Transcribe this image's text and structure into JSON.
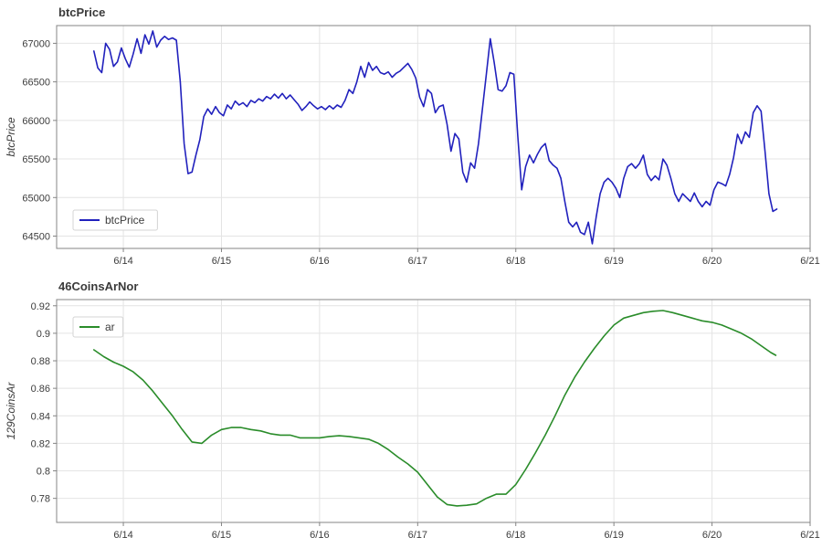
{
  "page": {
    "background": "#ffffff"
  },
  "chart_data": [
    {
      "type": "line",
      "title": "btcPrice",
      "ylabel": "btcPrice",
      "legend": "btcPrice",
      "legend_position": "bottom-left",
      "color": "#2121bd",
      "grid": true,
      "x_range": [
        13.32,
        21.0
      ],
      "y_range": [
        64340,
        67230
      ],
      "x_ticks": [
        {
          "v": 14,
          "label": "6/14"
        },
        {
          "v": 15,
          "label": "6/15"
        },
        {
          "v": 16,
          "label": "6/16"
        },
        {
          "v": 17,
          "label": "6/17"
        },
        {
          "v": 18,
          "label": "6/18"
        },
        {
          "v": 19,
          "label": "6/19"
        },
        {
          "v": 20,
          "label": "6/20"
        },
        {
          "v": 21,
          "label": "6/21"
        }
      ],
      "y_ticks": [
        {
          "v": 64500,
          "label": "64500"
        },
        {
          "v": 65000,
          "label": "65000"
        },
        {
          "v": 65500,
          "label": "65500"
        },
        {
          "v": 66000,
          "label": "66000"
        },
        {
          "v": 66500,
          "label": "66500"
        },
        {
          "v": 67000,
          "label": "67000"
        }
      ],
      "points": [
        [
          13.7,
          66900
        ],
        [
          13.74,
          66680
        ],
        [
          13.78,
          66620
        ],
        [
          13.82,
          67000
        ],
        [
          13.86,
          66920
        ],
        [
          13.9,
          66700
        ],
        [
          13.94,
          66760
        ],
        [
          13.98,
          66940
        ],
        [
          14.02,
          66800
        ],
        [
          14.06,
          66690
        ],
        [
          14.1,
          66860
        ],
        [
          14.14,
          67060
        ],
        [
          14.18,
          66870
        ],
        [
          14.22,
          67110
        ],
        [
          14.26,
          66990
        ],
        [
          14.3,
          67160
        ],
        [
          14.34,
          66950
        ],
        [
          14.38,
          67040
        ],
        [
          14.42,
          67090
        ],
        [
          14.46,
          67050
        ],
        [
          14.5,
          67070
        ],
        [
          14.54,
          67040
        ],
        [
          14.58,
          66500
        ],
        [
          14.62,
          65700
        ],
        [
          14.66,
          65310
        ],
        [
          14.7,
          65330
        ],
        [
          14.74,
          65550
        ],
        [
          14.78,
          65750
        ],
        [
          14.82,
          66050
        ],
        [
          14.86,
          66150
        ],
        [
          14.9,
          66080
        ],
        [
          14.94,
          66180
        ],
        [
          14.98,
          66100
        ],
        [
          15.02,
          66060
        ],
        [
          15.06,
          66200
        ],
        [
          15.1,
          66150
        ],
        [
          15.14,
          66250
        ],
        [
          15.18,
          66200
        ],
        [
          15.22,
          66230
        ],
        [
          15.26,
          66180
        ],
        [
          15.3,
          66260
        ],
        [
          15.34,
          66230
        ],
        [
          15.38,
          66280
        ],
        [
          15.42,
          66250
        ],
        [
          15.46,
          66310
        ],
        [
          15.5,
          66280
        ],
        [
          15.54,
          66340
        ],
        [
          15.58,
          66290
        ],
        [
          15.62,
          66350
        ],
        [
          15.66,
          66280
        ],
        [
          15.7,
          66330
        ],
        [
          15.74,
          66270
        ],
        [
          15.78,
          66210
        ],
        [
          15.82,
          66130
        ],
        [
          15.86,
          66180
        ],
        [
          15.9,
          66240
        ],
        [
          15.94,
          66190
        ],
        [
          15.98,
          66150
        ],
        [
          16.02,
          66180
        ],
        [
          16.06,
          66140
        ],
        [
          16.1,
          66190
        ],
        [
          16.14,
          66150
        ],
        [
          16.18,
          66200
        ],
        [
          16.22,
          66170
        ],
        [
          16.26,
          66260
        ],
        [
          16.3,
          66400
        ],
        [
          16.34,
          66350
        ],
        [
          16.38,
          66500
        ],
        [
          16.42,
          66700
        ],
        [
          16.46,
          66560
        ],
        [
          16.5,
          66750
        ],
        [
          16.54,
          66650
        ],
        [
          16.58,
          66700
        ],
        [
          16.62,
          66620
        ],
        [
          16.66,
          66600
        ],
        [
          16.7,
          66630
        ],
        [
          16.74,
          66560
        ],
        [
          16.78,
          66610
        ],
        [
          16.82,
          66640
        ],
        [
          16.86,
          66690
        ],
        [
          16.9,
          66740
        ],
        [
          16.94,
          66660
        ],
        [
          16.98,
          66550
        ],
        [
          17.02,
          66300
        ],
        [
          17.06,
          66180
        ],
        [
          17.1,
          66400
        ],
        [
          17.14,
          66350
        ],
        [
          17.18,
          66100
        ],
        [
          17.22,
          66180
        ],
        [
          17.26,
          66200
        ],
        [
          17.3,
          65950
        ],
        [
          17.34,
          65600
        ],
        [
          17.38,
          65830
        ],
        [
          17.42,
          65760
        ],
        [
          17.46,
          65330
        ],
        [
          17.5,
          65200
        ],
        [
          17.54,
          65450
        ],
        [
          17.58,
          65380
        ],
        [
          17.62,
          65700
        ],
        [
          17.66,
          66150
        ],
        [
          17.7,
          66600
        ],
        [
          17.74,
          67060
        ],
        [
          17.78,
          66750
        ],
        [
          17.82,
          66400
        ],
        [
          17.86,
          66380
        ],
        [
          17.9,
          66450
        ],
        [
          17.94,
          66620
        ],
        [
          17.98,
          66600
        ],
        [
          18.02,
          65800
        ],
        [
          18.06,
          65100
        ],
        [
          18.1,
          65400
        ],
        [
          18.14,
          65550
        ],
        [
          18.18,
          65450
        ],
        [
          18.22,
          65560
        ],
        [
          18.26,
          65650
        ],
        [
          18.3,
          65700
        ],
        [
          18.34,
          65480
        ],
        [
          18.38,
          65420
        ],
        [
          18.42,
          65380
        ],
        [
          18.46,
          65250
        ],
        [
          18.5,
          64950
        ],
        [
          18.54,
          64680
        ],
        [
          18.58,
          64620
        ],
        [
          18.62,
          64680
        ],
        [
          18.66,
          64550
        ],
        [
          18.7,
          64520
        ],
        [
          18.74,
          64680
        ],
        [
          18.78,
          64400
        ],
        [
          18.82,
          64750
        ],
        [
          18.86,
          65050
        ],
        [
          18.9,
          65200
        ],
        [
          18.94,
          65250
        ],
        [
          18.98,
          65200
        ],
        [
          19.02,
          65120
        ],
        [
          19.06,
          65000
        ],
        [
          19.1,
          65250
        ],
        [
          19.14,
          65400
        ],
        [
          19.18,
          65440
        ],
        [
          19.22,
          65380
        ],
        [
          19.26,
          65440
        ],
        [
          19.3,
          65550
        ],
        [
          19.34,
          65300
        ],
        [
          19.38,
          65220
        ],
        [
          19.42,
          65280
        ],
        [
          19.46,
          65230
        ],
        [
          19.5,
          65500
        ],
        [
          19.54,
          65420
        ],
        [
          19.58,
          65250
        ],
        [
          19.62,
          65050
        ],
        [
          19.66,
          64950
        ],
        [
          19.7,
          65050
        ],
        [
          19.74,
          65000
        ],
        [
          19.78,
          64950
        ],
        [
          19.82,
          65060
        ],
        [
          19.86,
          64950
        ],
        [
          19.9,
          64880
        ],
        [
          19.94,
          64950
        ],
        [
          19.98,
          64900
        ],
        [
          20.02,
          65100
        ],
        [
          20.06,
          65200
        ],
        [
          20.1,
          65180
        ],
        [
          20.14,
          65150
        ],
        [
          20.18,
          65300
        ],
        [
          20.22,
          65520
        ],
        [
          20.26,
          65820
        ],
        [
          20.3,
          65700
        ],
        [
          20.34,
          65850
        ],
        [
          20.38,
          65780
        ],
        [
          20.42,
          66100
        ],
        [
          20.46,
          66190
        ],
        [
          20.5,
          66120
        ],
        [
          20.54,
          65600
        ],
        [
          20.58,
          65050
        ],
        [
          20.62,
          64820
        ],
        [
          20.66,
          64850
        ]
      ]
    },
    {
      "type": "line",
      "title": "46CoinsArNor",
      "ylabel": "129CoinsAr",
      "legend": "ar",
      "legend_position": "top-left",
      "color": "#2a8c2a",
      "grid": true,
      "x_range": [
        13.32,
        21.0
      ],
      "y_range": [
        0.7625,
        0.9245
      ],
      "x_ticks": [
        {
          "v": 14,
          "label": "6/14"
        },
        {
          "v": 15,
          "label": "6/15"
        },
        {
          "v": 16,
          "label": "6/16"
        },
        {
          "v": 17,
          "label": "6/17"
        },
        {
          "v": 18,
          "label": "6/18"
        },
        {
          "v": 19,
          "label": "6/19"
        },
        {
          "v": 20,
          "label": "6/20"
        },
        {
          "v": 21,
          "label": "6/21"
        }
      ],
      "y_ticks": [
        {
          "v": 0.78,
          "label": "0.78"
        },
        {
          "v": 0.8,
          "label": "0.8"
        },
        {
          "v": 0.82,
          "label": "0.82"
        },
        {
          "v": 0.84,
          "label": "0.84"
        },
        {
          "v": 0.86,
          "label": "0.86"
        },
        {
          "v": 0.88,
          "label": "0.88"
        },
        {
          "v": 0.9,
          "label": "0.9"
        },
        {
          "v": 0.92,
          "label": "0.92"
        }
      ],
      "points": [
        [
          13.7,
          0.888
        ],
        [
          13.8,
          0.883
        ],
        [
          13.9,
          0.879
        ],
        [
          14.0,
          0.876
        ],
        [
          14.1,
          0.872
        ],
        [
          14.2,
          0.866
        ],
        [
          14.3,
          0.858
        ],
        [
          14.4,
          0.849
        ],
        [
          14.5,
          0.84
        ],
        [
          14.6,
          0.83
        ],
        [
          14.7,
          0.821
        ],
        [
          14.8,
          0.82
        ],
        [
          14.9,
          0.826
        ],
        [
          15.0,
          0.83
        ],
        [
          15.1,
          0.8315
        ],
        [
          15.2,
          0.8315
        ],
        [
          15.3,
          0.83
        ],
        [
          15.4,
          0.829
        ],
        [
          15.5,
          0.827
        ],
        [
          15.6,
          0.826
        ],
        [
          15.7,
          0.826
        ],
        [
          15.8,
          0.824
        ],
        [
          15.9,
          0.824
        ],
        [
          16.0,
          0.824
        ],
        [
          16.1,
          0.825
        ],
        [
          16.2,
          0.8255
        ],
        [
          16.3,
          0.825
        ],
        [
          16.4,
          0.824
        ],
        [
          16.5,
          0.823
        ],
        [
          16.6,
          0.82
        ],
        [
          16.7,
          0.8155
        ],
        [
          16.8,
          0.81
        ],
        [
          16.9,
          0.805
        ],
        [
          17.0,
          0.799
        ],
        [
          17.1,
          0.79
        ],
        [
          17.2,
          0.781
        ],
        [
          17.3,
          0.7755
        ],
        [
          17.4,
          0.7745
        ],
        [
          17.5,
          0.775
        ],
        [
          17.6,
          0.776
        ],
        [
          17.7,
          0.78
        ],
        [
          17.8,
          0.783
        ],
        [
          17.9,
          0.783
        ],
        [
          18.0,
          0.79
        ],
        [
          18.1,
          0.801
        ],
        [
          18.2,
          0.813
        ],
        [
          18.3,
          0.826
        ],
        [
          18.4,
          0.84
        ],
        [
          18.5,
          0.855
        ],
        [
          18.6,
          0.868
        ],
        [
          18.7,
          0.879
        ],
        [
          18.8,
          0.889
        ],
        [
          18.9,
          0.898
        ],
        [
          19.0,
          0.906
        ],
        [
          19.1,
          0.911
        ],
        [
          19.2,
          0.913
        ],
        [
          19.3,
          0.915
        ],
        [
          19.4,
          0.916
        ],
        [
          19.5,
          0.9165
        ],
        [
          19.6,
          0.915
        ],
        [
          19.7,
          0.913
        ],
        [
          19.8,
          0.911
        ],
        [
          19.9,
          0.909
        ],
        [
          20.0,
          0.908
        ],
        [
          20.1,
          0.906
        ],
        [
          20.2,
          0.903
        ],
        [
          20.3,
          0.9
        ],
        [
          20.4,
          0.896
        ],
        [
          20.5,
          0.891
        ],
        [
          20.6,
          0.886
        ],
        [
          20.65,
          0.884
        ]
      ]
    }
  ]
}
